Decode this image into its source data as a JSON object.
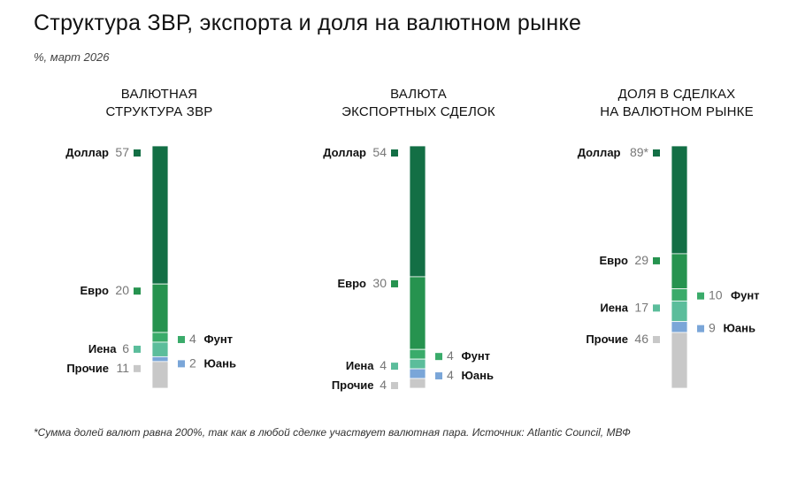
{
  "title": "Структура ЗВР, экспорта и доля на валютном рынке",
  "subtitle": "%, март 2026",
  "footnote": "*Сумма долей валют равна 200%, так как в любой сделке участвует валютная пара. Источник: Atlantic Council, МВФ",
  "colors": {
    "Доллар": "#136f45",
    "Евро": "#26934f",
    "Фунт": "#3aab6a",
    "Иена": "#5bbd9b",
    "Юань": "#7aa6d8",
    "Прочие": "#c8c8c8"
  },
  "chart_data": [
    {
      "type": "bar",
      "stacked": true,
      "title_lines": [
        "Валютная",
        "структура ЗВР"
      ],
      "segments": [
        {
          "name": "Доллар",
          "value": 57,
          "label": "57",
          "side": "left"
        },
        {
          "name": "Евро",
          "value": 20,
          "label": "20",
          "side": "left"
        },
        {
          "name": "Фунт",
          "value": 4,
          "label": "4",
          "side": "right"
        },
        {
          "name": "Иена",
          "value": 6,
          "label": "6",
          "side": "left"
        },
        {
          "name": "Юань",
          "value": 2,
          "label": "2",
          "side": "right"
        },
        {
          "name": "Прочие",
          "value": 11,
          "label": "11",
          "side": "left"
        }
      ]
    },
    {
      "type": "bar",
      "stacked": true,
      "title_lines": [
        "Валюта",
        "экспортных сделок"
      ],
      "segments": [
        {
          "name": "Доллар",
          "value": 54,
          "label": "54",
          "side": "left"
        },
        {
          "name": "Евро",
          "value": 30,
          "label": "30",
          "side": "left"
        },
        {
          "name": "Фунт",
          "value": 4,
          "label": "4",
          "side": "right"
        },
        {
          "name": "Иена",
          "value": 4,
          "label": "4",
          "side": "left"
        },
        {
          "name": "Юань",
          "value": 4,
          "label": "4",
          "side": "right"
        },
        {
          "name": "Прочие",
          "value": 4,
          "label": "4",
          "side": "left"
        }
      ]
    },
    {
      "type": "bar",
      "stacked": true,
      "title_lines": [
        "Доля в сделках",
        "на валютном рынке"
      ],
      "segments": [
        {
          "name": "Доллар",
          "value": 89,
          "label": "89*",
          "side": "left"
        },
        {
          "name": "Евро",
          "value": 29,
          "label": "29",
          "side": "left"
        },
        {
          "name": "Фунт",
          "value": 10,
          "label": "10",
          "side": "right"
        },
        {
          "name": "Иена",
          "value": 17,
          "label": "17",
          "side": "left"
        },
        {
          "name": "Юань",
          "value": 9,
          "label": "9",
          "side": "right"
        },
        {
          "name": "Прочие",
          "value": 46,
          "label": "46",
          "side": "left"
        }
      ]
    }
  ]
}
